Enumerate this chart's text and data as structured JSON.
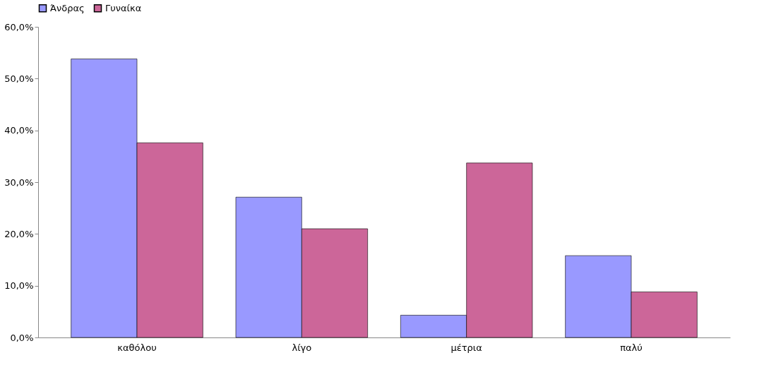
{
  "chart_data": {
    "type": "bar",
    "categories": [
      "καθόλου",
      "λίγο",
      "μέτρια",
      "παλύ"
    ],
    "series": [
      {
        "name": "Άνδρας",
        "color": "#9999ff",
        "values": [
          53.8,
          27.1,
          4.3,
          15.8
        ]
      },
      {
        "name": "Γυναίκα",
        "color": "#cc6699",
        "values": [
          37.6,
          21.0,
          33.7,
          8.8
        ]
      }
    ],
    "ylim": [
      0,
      60
    ],
    "yticks": [
      {
        "value": 0,
        "label": "0,0%"
      },
      {
        "value": 10,
        "label": "10,0%"
      },
      {
        "value": 20,
        "label": "20,0%"
      },
      {
        "value": 30,
        "label": "30,0%"
      },
      {
        "value": 40,
        "label": "40,0%"
      },
      {
        "value": 50,
        "label": "50,0%"
      },
      {
        "value": 60,
        "label": "60,0%"
      }
    ],
    "grid": false,
    "legend": "top"
  }
}
